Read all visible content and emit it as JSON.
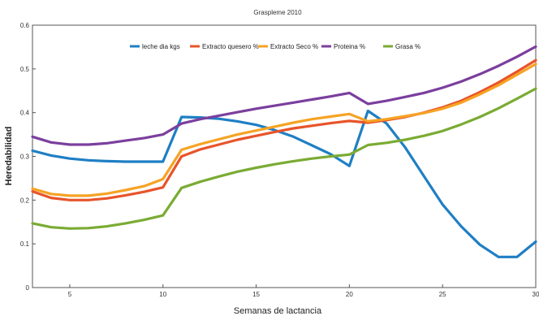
{
  "chart_data": {
    "type": "line",
    "title": "Graspleme 2010",
    "xlabel": "Semanas de lactancia",
    "ylabel": "Heredabilidad",
    "xlim": [
      3,
      30
    ],
    "ylim": [
      0,
      0.6
    ],
    "xticks": [
      {
        "value": 5,
        "label": "5"
      },
      {
        "value": 10,
        "label": "10"
      },
      {
        "value": 15,
        "label": "15"
      },
      {
        "value": 20,
        "label": "20"
      },
      {
        "value": 25,
        "label": "25"
      },
      {
        "value": 30,
        "label": "30"
      }
    ],
    "yticks": [
      {
        "value": 0,
        "label": "0"
      },
      {
        "value": 0.1,
        "label": "0.1"
      },
      {
        "value": 0.2,
        "label": "0.2"
      },
      {
        "value": 0.3,
        "label": "0.3"
      },
      {
        "value": 0.4,
        "label": "0.4"
      },
      {
        "value": 0.5,
        "label": "0.5"
      },
      {
        "value": 0.6,
        "label": "0.6"
      }
    ],
    "grid": false,
    "legend_position": "top",
    "series": [
      {
        "name": "leche dia kgs",
        "color": "#1f7fc4",
        "x": [
          3,
          4,
          5,
          6,
          7,
          8,
          9,
          10,
          11,
          12,
          13,
          14,
          15,
          16,
          17,
          18,
          19,
          20,
          21,
          22,
          23,
          24,
          25,
          26,
          27,
          28,
          29,
          30
        ],
        "y": [
          0.313,
          0.302,
          0.295,
          0.291,
          0.289,
          0.288,
          0.288,
          0.288,
          0.39,
          0.389,
          0.386,
          0.38,
          0.372,
          0.36,
          0.345,
          0.325,
          0.305,
          0.278,
          0.404,
          0.375,
          0.32,
          0.255,
          0.19,
          0.14,
          0.098,
          0.07,
          0.07,
          0.105
        ]
      },
      {
        "name": "Extracto quesero %",
        "color": "#e8542a",
        "x": [
          3,
          4,
          5,
          6,
          7,
          8,
          9,
          10,
          11,
          12,
          13,
          14,
          15,
          16,
          17,
          18,
          19,
          20,
          21,
          22,
          23,
          24,
          25,
          26,
          27,
          28,
          29,
          30
        ],
        "y": [
          0.22,
          0.205,
          0.2,
          0.2,
          0.204,
          0.211,
          0.219,
          0.229,
          0.3,
          0.316,
          0.327,
          0.338,
          0.347,
          0.356,
          0.364,
          0.37,
          0.376,
          0.381,
          0.377,
          0.383,
          0.39,
          0.4,
          0.412,
          0.427,
          0.447,
          0.469,
          0.494,
          0.52
        ]
      },
      {
        "name": "Extracto Seco %",
        "color": "#f6a324",
        "x": [
          3,
          4,
          5,
          6,
          7,
          8,
          9,
          10,
          11,
          12,
          13,
          14,
          15,
          16,
          17,
          18,
          19,
          20,
          21,
          22,
          23,
          24,
          25,
          26,
          27,
          28,
          29,
          30
        ],
        "y": [
          0.226,
          0.214,
          0.21,
          0.21,
          0.215,
          0.223,
          0.232,
          0.248,
          0.315,
          0.328,
          0.339,
          0.35,
          0.359,
          0.368,
          0.377,
          0.385,
          0.391,
          0.397,
          0.38,
          0.385,
          0.392,
          0.399,
          0.409,
          0.423,
          0.442,
          0.463,
          0.487,
          0.511
        ]
      },
      {
        "name": "Proteina %",
        "color": "#7b3f9e",
        "x": [
          3,
          4,
          5,
          6,
          7,
          8,
          9,
          10,
          11,
          12,
          13,
          14,
          15,
          16,
          17,
          18,
          19,
          20,
          21,
          22,
          23,
          24,
          25,
          26,
          27,
          28,
          29,
          30
        ],
        "y": [
          0.345,
          0.332,
          0.327,
          0.327,
          0.33,
          0.336,
          0.342,
          0.35,
          0.375,
          0.385,
          0.393,
          0.401,
          0.409,
          0.416,
          0.423,
          0.43,
          0.437,
          0.445,
          0.42,
          0.427,
          0.436,
          0.445,
          0.457,
          0.471,
          0.488,
          0.507,
          0.528,
          0.551
        ]
      },
      {
        "name": "Grasa %",
        "color": "#7aab34",
        "x": [
          3,
          4,
          5,
          6,
          7,
          8,
          9,
          10,
          11,
          12,
          13,
          14,
          15,
          16,
          17,
          18,
          19,
          20,
          21,
          22,
          23,
          24,
          25,
          26,
          27,
          28,
          29,
          30
        ],
        "y": [
          0.147,
          0.138,
          0.135,
          0.136,
          0.14,
          0.147,
          0.155,
          0.165,
          0.228,
          0.242,
          0.254,
          0.265,
          0.274,
          0.282,
          0.289,
          0.295,
          0.3,
          0.304,
          0.326,
          0.331,
          0.338,
          0.347,
          0.358,
          0.373,
          0.39,
          0.41,
          0.432,
          0.455
        ]
      }
    ]
  }
}
